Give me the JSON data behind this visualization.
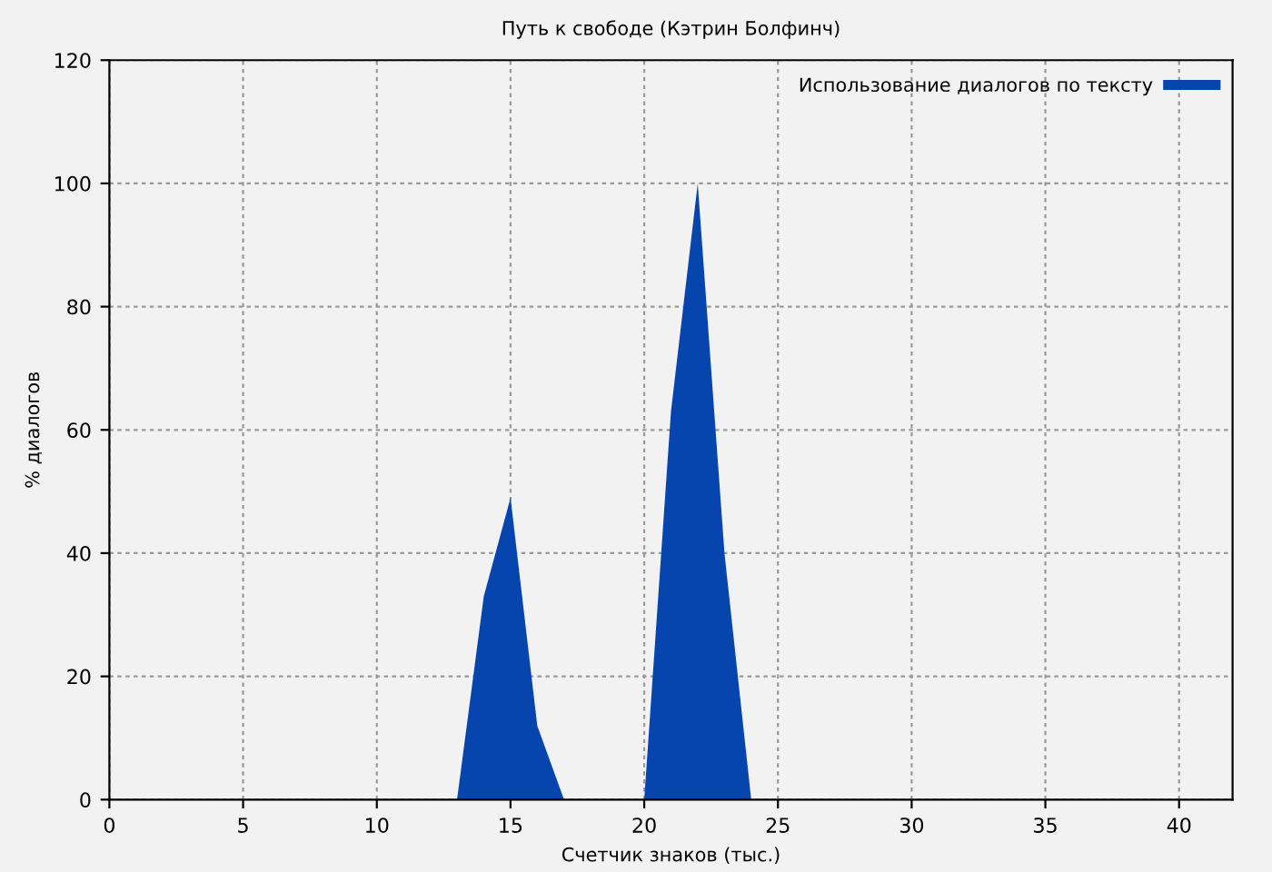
{
  "chart_data": {
    "type": "area",
    "title": "Путь к свободе (Кэтрин Болфинч)",
    "xlabel": "Счетчик знаков (тыс.)",
    "ylabel": "% диалогов",
    "x": [
      0,
      1,
      2,
      3,
      4,
      5,
      6,
      7,
      8,
      9,
      10,
      11,
      12,
      13,
      14,
      15,
      16,
      17,
      18,
      19,
      20,
      21,
      22,
      23,
      24,
      25,
      26,
      27,
      28,
      29,
      30,
      31,
      32,
      33,
      34,
      35,
      36,
      37,
      38,
      39,
      40,
      41
    ],
    "series": [
      {
        "name": "Использование диалогов по тексту",
        "color": "#0645ad",
        "values": [
          0,
          0,
          0,
          0,
          0,
          0,
          0,
          0,
          0,
          0,
          0,
          0,
          0,
          0,
          33,
          49,
          12,
          0,
          0,
          0,
          0,
          63,
          100,
          40,
          0,
          0,
          0,
          0,
          0,
          0,
          0,
          0,
          0,
          0,
          0,
          0,
          0,
          0,
          0,
          0,
          0,
          0
        ]
      }
    ],
    "xlim": [
      0,
      42
    ],
    "ylim": [
      0,
      120
    ],
    "xticks": [
      0,
      5,
      10,
      15,
      20,
      25,
      30,
      35,
      40
    ],
    "yticks": [
      0,
      20,
      40,
      60,
      80,
      100,
      120
    ],
    "grid": true,
    "legend": "top right"
  }
}
